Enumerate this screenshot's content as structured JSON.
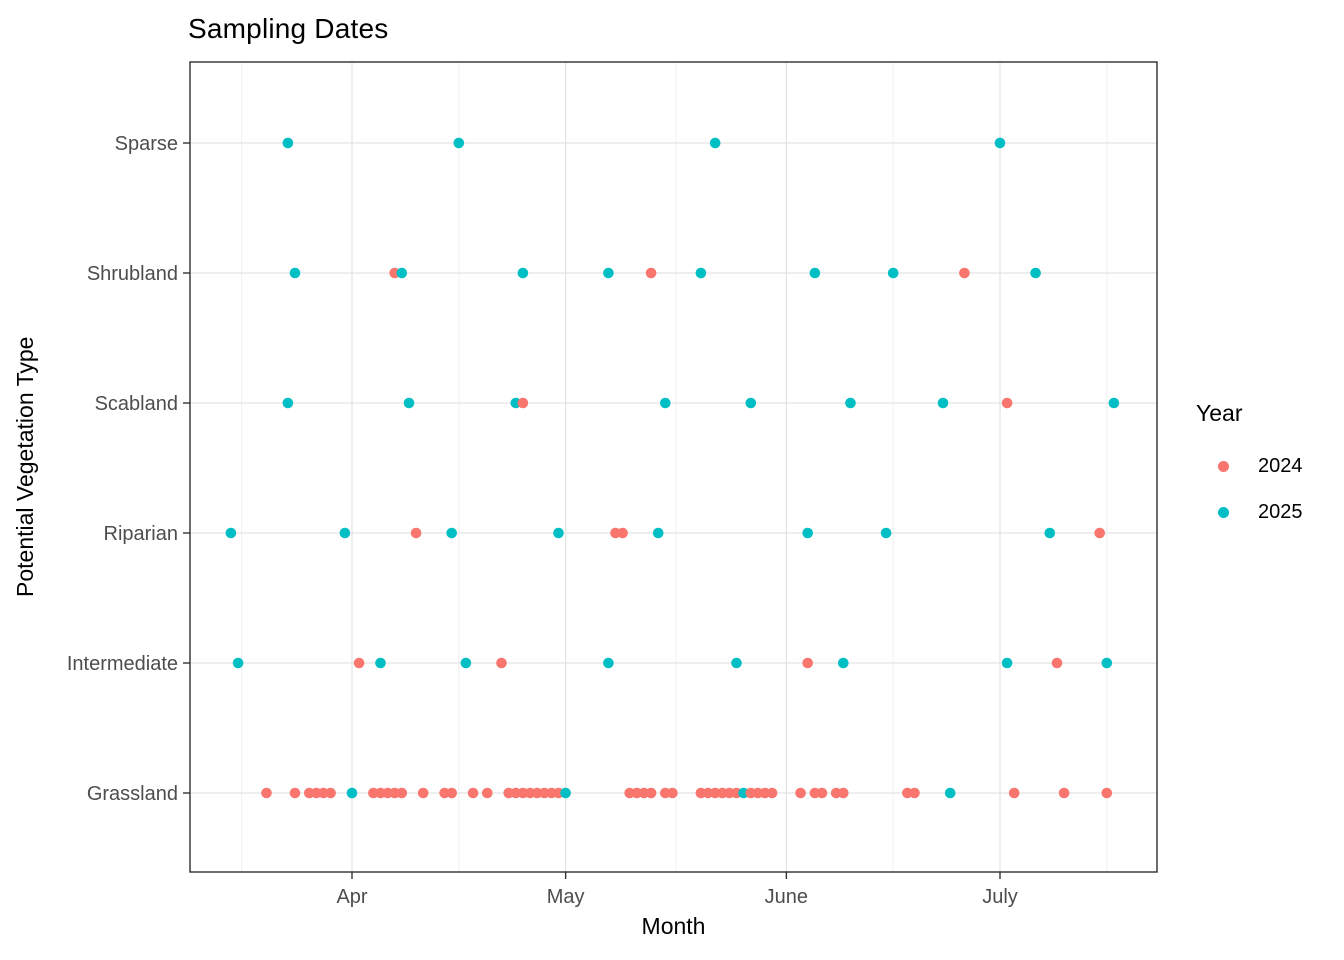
{
  "chart_data": {
    "type": "scatter",
    "title": "Sampling Dates",
    "xlabel": "Month",
    "ylabel": "Potential Vegetation Type",
    "x_ticks": [
      "Apr",
      "May",
      "June",
      "July"
    ],
    "x_domain_approx": [
      "Mar 9",
      "Jul 23"
    ],
    "categories_top_to_bottom": [
      "Sparse",
      "Shrubland",
      "Scabland",
      "Riparian",
      "Intermediate",
      "Grassland"
    ],
    "grid": "light gray major gridlines at each month and category, minor vertical gridlines at mid-month",
    "legend": {
      "title": "Year",
      "position": "right",
      "entries": [
        {
          "label": "2024",
          "color": "#F8766D"
        },
        {
          "label": "2025",
          "color": "#00BFC4"
        }
      ]
    },
    "series": [
      {
        "category": "Sparse",
        "dates_2024": [],
        "dates_2025": [
          "Mar 23",
          "Apr 16",
          "May 22",
          "Jul 1"
        ]
      },
      {
        "category": "Shrubland",
        "dates_2024": [
          "Apr 7",
          "May 13",
          "Jun 26"
        ],
        "dates_2025": [
          "Mar 24",
          "Apr 8",
          "Apr 25",
          "May 7",
          "May 20",
          "Jun 5",
          "Jun 16",
          "Jul 6"
        ]
      },
      {
        "category": "Scabland",
        "dates_2024": [
          "Apr 25",
          "Jul 2"
        ],
        "dates_2025": [
          "Mar 23",
          "Apr 9",
          "Apr 24",
          "May 15",
          "May 27",
          "Jun 10",
          "Jun 23",
          "Jul 17"
        ]
      },
      {
        "category": "Riparian",
        "dates_2024": [
          "Apr 10",
          "May 8",
          "May 9",
          "Jul 15"
        ],
        "dates_2025": [
          "Mar 15",
          "Mar 31",
          "Apr 15",
          "Apr 30",
          "May 14",
          "Jun 4",
          "Jun 15",
          "Jul 8"
        ]
      },
      {
        "category": "Intermediate",
        "dates_2024": [
          "Apr 2",
          "Apr 22",
          "Jun 4",
          "Jul 9"
        ],
        "dates_2025": [
          "Mar 16",
          "Apr 5",
          "Apr 17",
          "May 7",
          "May 25",
          "Jun 9",
          "Jul 2",
          "Jul 16"
        ]
      },
      {
        "category": "Grassland",
        "dates_2024": [
          "Mar 20",
          "Mar 24",
          "Mar 26",
          "Mar 27",
          "Mar 28",
          "Mar 29",
          "Apr 4",
          "Apr 5",
          "Apr 6",
          "Apr 7",
          "Apr 8",
          "Apr 11",
          "Apr 14",
          "Apr 15",
          "Apr 18",
          "Apr 20",
          "Apr 23",
          "Apr 24",
          "Apr 25",
          "Apr 26",
          "Apr 27",
          "Apr 28",
          "Apr 29",
          "Apr 30",
          "May 10",
          "May 11",
          "May 12",
          "May 13",
          "May 15",
          "May 16",
          "May 20",
          "May 21",
          "May 22",
          "May 23",
          "May 24",
          "May 25",
          "May 27",
          "May 28",
          "May 29",
          "May 30",
          "Jun 3",
          "Jun 5",
          "Jun 6",
          "Jun 8",
          "Jun 9",
          "Jun 18",
          "Jun 19",
          "Jul 3",
          "Jul 10",
          "Jul 16"
        ],
        "dates_2025": [
          "Apr 1",
          "May 1",
          "May 26",
          "Jun 24"
        ]
      }
    ]
  }
}
